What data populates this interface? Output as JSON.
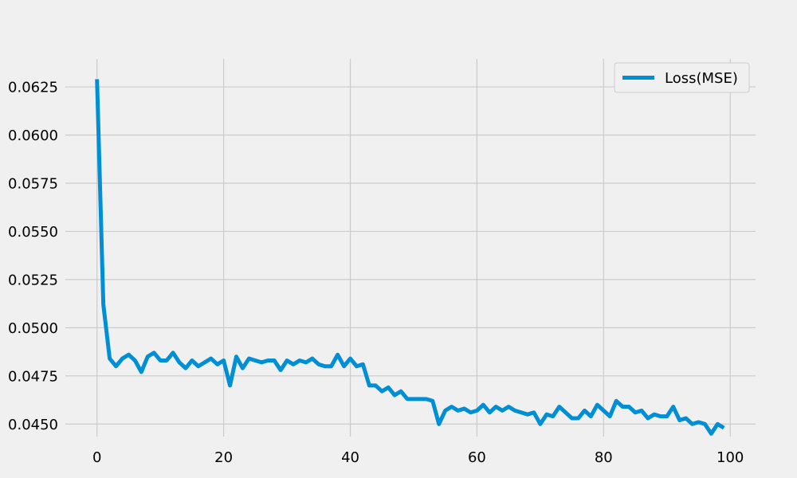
{
  "chart_data": {
    "type": "line",
    "title": "",
    "xlabel": "",
    "ylabel": "",
    "xlim": [
      -5,
      104
    ],
    "ylim": [
      0.04435,
      0.06395
    ],
    "grid": true,
    "legend_position": "top-right",
    "x_ticks": [
      0,
      20,
      40,
      60,
      80,
      100
    ],
    "x_tick_labels": [
      "0",
      "20",
      "40",
      "60",
      "80",
      "100"
    ],
    "y_ticks": [
      0.045,
      0.0475,
      0.05,
      0.0525,
      0.055,
      0.0575,
      0.06,
      0.0625
    ],
    "y_tick_labels": [
      "0.0450",
      "0.0475",
      "0.0500",
      "0.0525",
      "0.0550",
      "0.0575",
      "0.0600",
      "0.0625"
    ],
    "series": [
      {
        "name": "Loss(MSE)",
        "color": "#008fd5",
        "x": [
          0,
          1,
          2,
          3,
          4,
          5,
          6,
          7,
          8,
          9,
          10,
          11,
          12,
          13,
          14,
          15,
          16,
          17,
          18,
          19,
          20,
          21,
          22,
          23,
          24,
          25,
          26,
          27,
          28,
          29,
          30,
          31,
          32,
          33,
          34,
          35,
          36,
          37,
          38,
          39,
          40,
          41,
          42,
          43,
          44,
          45,
          46,
          47,
          48,
          49,
          50,
          51,
          52,
          53,
          54,
          55,
          56,
          57,
          58,
          59,
          60,
          61,
          62,
          63,
          64,
          65,
          66,
          67,
          68,
          69,
          70,
          71,
          72,
          73,
          74,
          75,
          76,
          77,
          78,
          79,
          80,
          81,
          82,
          83,
          84,
          85,
          86,
          87,
          88,
          89,
          90,
          91,
          92,
          93,
          94,
          95,
          96,
          97,
          98,
          99
        ],
        "values": [
          0.0629,
          0.0512,
          0.0484,
          0.048,
          0.0484,
          0.0486,
          0.0483,
          0.0477,
          0.0485,
          0.0487,
          0.0483,
          0.0483,
          0.0487,
          0.0482,
          0.0479,
          0.0483,
          0.048,
          0.0482,
          0.0484,
          0.0481,
          0.0483,
          0.047,
          0.0485,
          0.0479,
          0.0484,
          0.0483,
          0.0482,
          0.0483,
          0.0483,
          0.0478,
          0.0483,
          0.0481,
          0.0483,
          0.0482,
          0.0484,
          0.0481,
          0.048,
          0.048,
          0.0486,
          0.048,
          0.0484,
          0.048,
          0.0481,
          0.047,
          0.047,
          0.0467,
          0.0469,
          0.0465,
          0.0467,
          0.0463,
          0.0463,
          0.0463,
          0.0463,
          0.0462,
          0.045,
          0.0457,
          0.0459,
          0.0457,
          0.0458,
          0.0456,
          0.0457,
          0.046,
          0.0456,
          0.0459,
          0.0457,
          0.0459,
          0.0457,
          0.0456,
          0.0455,
          0.0456,
          0.045,
          0.0455,
          0.0454,
          0.0459,
          0.0456,
          0.0453,
          0.0453,
          0.0457,
          0.0454,
          0.046,
          0.0457,
          0.0454,
          0.0462,
          0.0459,
          0.0459,
          0.0456,
          0.0457,
          0.0453,
          0.0455,
          0.0454,
          0.0454,
          0.0459,
          0.0452,
          0.0453,
          0.045,
          0.0451,
          0.045,
          0.0445,
          0.045,
          0.0448
        ]
      }
    ]
  }
}
